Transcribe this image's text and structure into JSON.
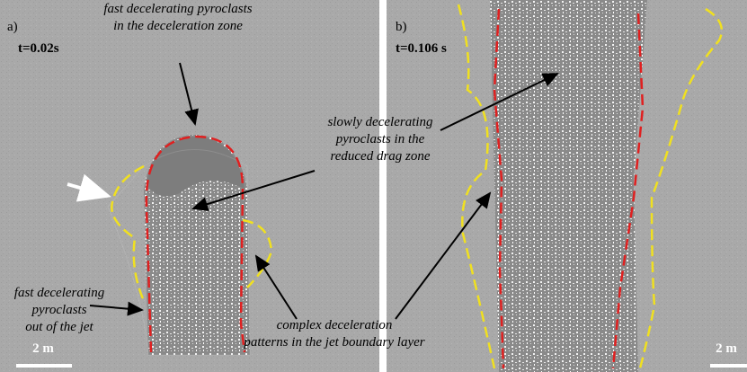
{
  "panels": [
    {
      "label": "a)",
      "time": "t=0.02s",
      "scale": "2 m"
    },
    {
      "label": "b)",
      "time": "t=0.106 s",
      "scale": "2 m"
    }
  ],
  "annotations": [
    {
      "lines": [
        "fast decelerating pyroclasts",
        "in the deceleration zone"
      ]
    },
    {
      "lines": [
        "slowly decelerating",
        "pyroclasts in the",
        "reduced drag zone"
      ]
    },
    {
      "lines": [
        "fast decelerating",
        "pyroclasts",
        "out of the jet"
      ]
    },
    {
      "lines": [
        "complex deceleration",
        "patterns in the jet boundary layer"
      ]
    }
  ]
}
